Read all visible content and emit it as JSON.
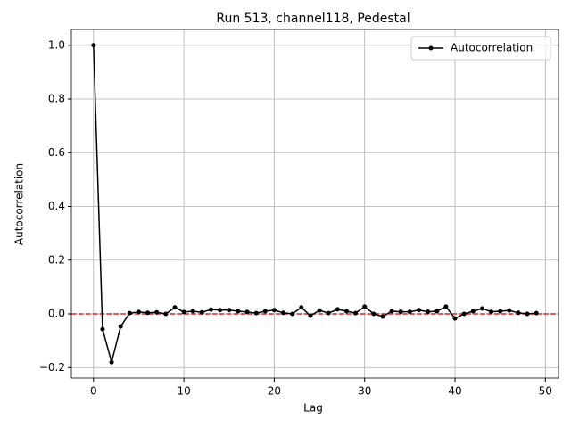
{
  "chart_data": {
    "type": "line",
    "title": "Run 513, channel118, Pedestal",
    "xlabel": "Lag",
    "ylabel": "Autocorrelation",
    "x": [
      0,
      1,
      2,
      3,
      4,
      5,
      6,
      7,
      8,
      9,
      10,
      11,
      12,
      13,
      14,
      15,
      16,
      17,
      18,
      19,
      20,
      21,
      22,
      23,
      24,
      25,
      26,
      27,
      28,
      29,
      30,
      31,
      32,
      33,
      34,
      35,
      36,
      37,
      38,
      39,
      40,
      41,
      42,
      43,
      44,
      45,
      46,
      47,
      48,
      49
    ],
    "series": [
      {
        "name": "Autocorrelation",
        "color": "#000000",
        "values": [
          1.0,
          -0.057,
          -0.18,
          -0.047,
          0.003,
          0.007,
          0.004,
          0.006,
          0.0,
          0.024,
          0.007,
          0.01,
          0.006,
          0.016,
          0.014,
          0.014,
          0.01,
          0.007,
          0.003,
          0.01,
          0.014,
          0.004,
          0.0,
          0.024,
          -0.007,
          0.013,
          0.003,
          0.017,
          0.01,
          0.003,
          0.027,
          0.0,
          -0.01,
          0.01,
          0.008,
          0.008,
          0.014,
          0.008,
          0.01,
          0.027,
          -0.017,
          0.0,
          0.01,
          0.02,
          0.008,
          0.01,
          0.013,
          0.004,
          0.0,
          0.003
        ]
      }
    ],
    "hline": {
      "value": 0,
      "color": "#d62728"
    },
    "xlim": [
      -2.45,
      51.45
    ],
    "ylim": [
      -0.239,
      1.059
    ],
    "xticks": [
      0,
      10,
      20,
      30,
      40,
      50
    ],
    "yticks": [
      {
        "value": -0.2,
        "label": "−0.2"
      },
      {
        "value": 0,
        "label": "0.0"
      },
      {
        "value": 0.2,
        "label": "0.2"
      },
      {
        "value": 0.4,
        "label": "0.4"
      },
      {
        "value": 0.6,
        "label": "0.6"
      },
      {
        "value": 0.8,
        "label": "0.8"
      },
      {
        "value": 1.0,
        "label": "1.0"
      }
    ],
    "grid": true,
    "legend": "upper right"
  }
}
